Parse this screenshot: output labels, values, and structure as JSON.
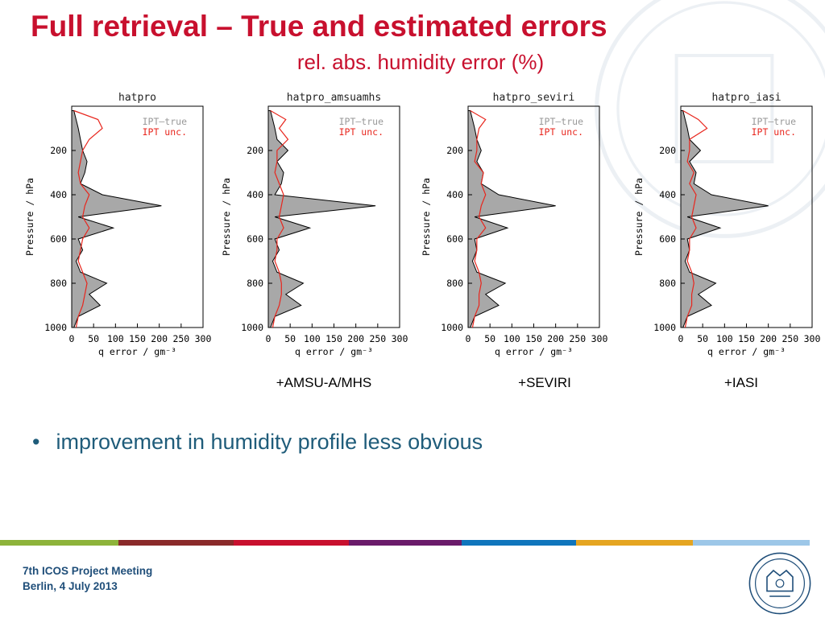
{
  "slide": {
    "title": "Full retrieval – True and estimated errors",
    "subtitle": "rel. abs. humidity error (%)",
    "bullet": "improvement in humidity profile less obvious",
    "footer_line1": "7th ICOS Project Meeting",
    "footer_line2": "Berlin, 4 July 2013",
    "stripe_colors": [
      "#8db33a",
      "#8a2a2a",
      "#c8102e",
      "#c8102e",
      "#6a1b6a",
      "#0f75bc",
      "#e5a521",
      "#9dc7e8"
    ]
  },
  "chart_data": [
    {
      "type": "area",
      "title": "hatpro",
      "caption": "",
      "xlabel": "q error / gm⁻³",
      "ylabel": "Pressure / hPa",
      "xlim": [
        0,
        300
      ],
      "ylim": [
        1000,
        0
      ],
      "xticks": [
        "0",
        "50",
        "100",
        "150",
        "200",
        "250",
        "300"
      ],
      "yticks": [
        "200",
        "400",
        "600",
        "800",
        "1000"
      ],
      "legend": [
        "IPT–true",
        "IPT unc."
      ],
      "legend_colors": [
        "#999999",
        "#e8261d"
      ],
      "p": [
        20,
        60,
        100,
        150,
        200,
        250,
        300,
        350,
        400,
        450,
        500,
        550,
        600,
        650,
        700,
        750,
        800,
        850,
        900,
        950,
        1000
      ],
      "series": [
        {
          "name": "IPT–true",
          "color": "#000000",
          "fill": "#a8a8a8",
          "values": [
            5,
            10,
            15,
            20,
            25,
            35,
            30,
            20,
            70,
            205,
            15,
            95,
            15,
            25,
            10,
            20,
            80,
            40,
            65,
            15,
            5
          ]
        },
        {
          "name": "IPT unc.",
          "color": "#e8261d",
          "values": [
            5,
            60,
            70,
            40,
            25,
            20,
            15,
            20,
            40,
            30,
            25,
            40,
            25,
            20,
            15,
            25,
            35,
            30,
            25,
            15,
            10
          ]
        }
      ]
    },
    {
      "type": "area",
      "title": "hatpro_amsuamhs",
      "caption": "+AMSU-A/MHS",
      "xlabel": "q error / gm⁻³",
      "ylabel": "Pressure / hPa",
      "xlim": [
        0,
        300
      ],
      "ylim": [
        1000,
        0
      ],
      "xticks": [
        "0",
        "50",
        "100",
        "150",
        "200",
        "250",
        "300"
      ],
      "yticks": [
        "200",
        "400",
        "600",
        "800",
        "1000"
      ],
      "legend": [
        "IPT–true",
        "IPT unc."
      ],
      "legend_colors": [
        "#999999",
        "#e8261d"
      ],
      "p": [
        20,
        60,
        100,
        150,
        200,
        250,
        300,
        350,
        400,
        450,
        500,
        550,
        600,
        650,
        700,
        750,
        800,
        850,
        900,
        950,
        1000
      ],
      "series": [
        {
          "name": "IPT–true",
          "color": "#000000",
          "fill": "#a8a8a8",
          "values": [
            5,
            10,
            15,
            20,
            45,
            20,
            35,
            30,
            15,
            245,
            15,
            95,
            15,
            25,
            10,
            20,
            80,
            40,
            75,
            15,
            5
          ]
        },
        {
          "name": "IPT unc.",
          "color": "#e8261d",
          "values": [
            5,
            40,
            25,
            45,
            20,
            20,
            15,
            25,
            35,
            30,
            25,
            35,
            20,
            20,
            15,
            25,
            30,
            30,
            25,
            15,
            10
          ]
        }
      ]
    },
    {
      "type": "area",
      "title": "hatpro_seviri",
      "caption": "+SEVIRI",
      "xlabel": "q error / gm⁻³",
      "ylabel": "Pressure / hPa",
      "xlim": [
        0,
        300
      ],
      "ylim": [
        1000,
        0
      ],
      "xticks": [
        "0",
        "50",
        "100",
        "150",
        "200",
        "250",
        "300"
      ],
      "yticks": [
        "200",
        "400",
        "600",
        "800",
        "1000"
      ],
      "legend": [
        "IPT–true",
        "IPT unc."
      ],
      "legend_colors": [
        "#999999",
        "#e8261d"
      ],
      "p": [
        20,
        60,
        100,
        150,
        200,
        250,
        300,
        350,
        400,
        450,
        500,
        550,
        600,
        650,
        700,
        750,
        800,
        850,
        900,
        950,
        1000
      ],
      "series": [
        {
          "name": "IPT–true",
          "color": "#000000",
          "fill": "#a8a8a8",
          "values": [
            5,
            10,
            15,
            20,
            30,
            20,
            35,
            30,
            70,
            200,
            15,
            90,
            15,
            20,
            10,
            20,
            85,
            40,
            70,
            15,
            5
          ]
        },
        {
          "name": "IPT unc.",
          "color": "#e8261d",
          "values": [
            5,
            40,
            25,
            20,
            20,
            15,
            35,
            30,
            40,
            30,
            25,
            40,
            20,
            20,
            15,
            25,
            30,
            25,
            25,
            15,
            10
          ]
        }
      ]
    },
    {
      "type": "area",
      "title": "hatpro_iasi",
      "caption": "+IASI",
      "xlabel": "q error / gm⁻³",
      "ylabel": "Pressure / hPa",
      "xlim": [
        0,
        300
      ],
      "ylim": [
        1000,
        0
      ],
      "xticks": [
        "0",
        "50",
        "100",
        "150",
        "200",
        "250",
        "300"
      ],
      "yticks": [
        "200",
        "400",
        "600",
        "800",
        "1000"
      ],
      "legend": [
        "IPT–true",
        "IPT unc."
      ],
      "legend_colors": [
        "#999999",
        "#e8261d"
      ],
      "p": [
        20,
        60,
        100,
        150,
        200,
        250,
        300,
        350,
        400,
        450,
        500,
        550,
        600,
        650,
        700,
        750,
        800,
        850,
        900,
        950,
        1000
      ],
      "series": [
        {
          "name": "IPT–true",
          "color": "#000000",
          "fill": "#a8a8a8",
          "values": [
            5,
            10,
            15,
            20,
            45,
            20,
            35,
            30,
            70,
            200,
            15,
            90,
            15,
            20,
            10,
            20,
            80,
            40,
            70,
            15,
            5
          ]
        },
        {
          "name": "IPT unc.",
          "color": "#e8261d",
          "values": [
            5,
            40,
            60,
            20,
            20,
            15,
            30,
            20,
            35,
            30,
            25,
            35,
            20,
            20,
            15,
            25,
            30,
            25,
            25,
            15,
            10
          ]
        }
      ]
    }
  ]
}
